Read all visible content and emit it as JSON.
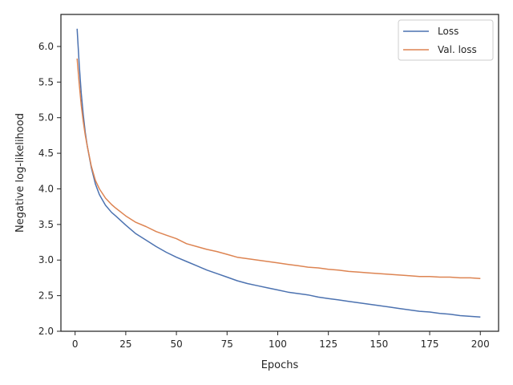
{
  "chart_data": {
    "type": "line",
    "title": "",
    "xlabel": "Epochs",
    "ylabel": "Negative log-likelihood",
    "xlim": [
      -7,
      209
    ],
    "ylim": [
      2.0,
      6.45
    ],
    "xticks": [
      0,
      25,
      50,
      75,
      100,
      125,
      150,
      175,
      200
    ],
    "yticks": [
      2.0,
      2.5,
      3.0,
      3.5,
      4.0,
      4.5,
      5.0,
      5.5,
      6.0
    ],
    "ytick_labels": [
      "2.0",
      "2.5",
      "3.0",
      "3.5",
      "4.0",
      "4.5",
      "5.0",
      "5.5",
      "6.0"
    ],
    "grid": false,
    "legend_position": "top-right",
    "series": [
      {
        "name": "Loss",
        "color": "#4c72b0",
        "x": [
          1,
          2,
          3,
          4,
          5,
          6,
          8,
          10,
          12,
          15,
          18,
          20,
          25,
          30,
          35,
          40,
          45,
          50,
          55,
          60,
          65,
          70,
          75,
          80,
          85,
          90,
          95,
          100,
          105,
          110,
          115,
          120,
          125,
          130,
          135,
          140,
          145,
          150,
          155,
          160,
          165,
          170,
          175,
          180,
          185,
          190,
          195,
          200
        ],
        "y": [
          6.25,
          5.75,
          5.35,
          5.05,
          4.8,
          4.6,
          4.3,
          4.07,
          3.92,
          3.77,
          3.67,
          3.62,
          3.49,
          3.37,
          3.28,
          3.19,
          3.11,
          3.04,
          2.98,
          2.92,
          2.86,
          2.81,
          2.76,
          2.71,
          2.67,
          2.64,
          2.61,
          2.58,
          2.55,
          2.53,
          2.51,
          2.48,
          2.46,
          2.44,
          2.42,
          2.4,
          2.38,
          2.36,
          2.34,
          2.32,
          2.3,
          2.28,
          2.27,
          2.25,
          2.24,
          2.22,
          2.21,
          2.2
        ]
      },
      {
        "name": "Val. loss",
        "color": "#dd8452",
        "x": [
          1,
          2,
          3,
          4,
          5,
          6,
          8,
          10,
          12,
          15,
          18,
          20,
          25,
          30,
          35,
          40,
          45,
          50,
          55,
          60,
          65,
          70,
          75,
          80,
          85,
          90,
          95,
          100,
          105,
          110,
          115,
          120,
          125,
          130,
          135,
          140,
          145,
          150,
          155,
          160,
          165,
          170,
          175,
          180,
          185,
          190,
          195,
          200
        ],
        "y": [
          5.83,
          5.48,
          5.18,
          4.95,
          4.76,
          4.6,
          4.32,
          4.12,
          4.0,
          3.87,
          3.78,
          3.73,
          3.62,
          3.53,
          3.47,
          3.4,
          3.35,
          3.3,
          3.23,
          3.19,
          3.15,
          3.12,
          3.08,
          3.04,
          3.02,
          3.0,
          2.98,
          2.96,
          2.94,
          2.92,
          2.9,
          2.89,
          2.87,
          2.86,
          2.84,
          2.83,
          2.82,
          2.81,
          2.8,
          2.79,
          2.78,
          2.77,
          2.77,
          2.76,
          2.76,
          2.75,
          2.75,
          2.74
        ]
      }
    ]
  }
}
